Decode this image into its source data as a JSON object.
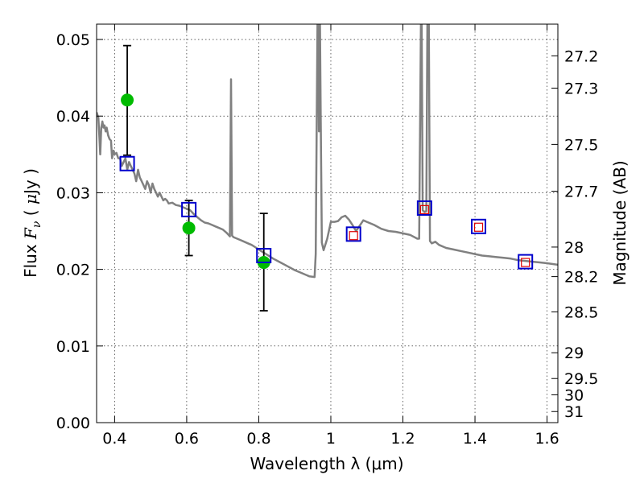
{
  "chart_data": {
    "type": "scatter",
    "xlabel": "Wavelength  λ (μm)",
    "ylabel": "Flux  F_ν  ( μJy )",
    "ylabel_parts": [
      "Flux  ",
      "F",
      "ν",
      "  ( ",
      "μ",
      "Jy )"
    ],
    "y2label": "Magnitude (AB)",
    "xlim": [
      0.35,
      1.63
    ],
    "ylim": [
      0.0,
      0.052
    ],
    "grid": true,
    "x_ticks": [
      {
        "value": 0.4,
        "label": "0.4"
      },
      {
        "value": 0.6,
        "label": "0.6"
      },
      {
        "value": 0.8,
        "label": "0.8"
      },
      {
        "value": 1.0,
        "label": "1"
      },
      {
        "value": 1.2,
        "label": "1.2"
      },
      {
        "value": 1.4,
        "label": "1.4"
      },
      {
        "value": 1.6,
        "label": "1.6"
      }
    ],
    "y_ticks": [
      {
        "value": 0.0,
        "label": "0.00"
      },
      {
        "value": 0.01,
        "label": "0.01"
      },
      {
        "value": 0.02,
        "label": "0.02"
      },
      {
        "value": 0.03,
        "label": "0.03"
      },
      {
        "value": 0.04,
        "label": "0.04"
      },
      {
        "value": 0.05,
        "label": "0.05"
      }
    ],
    "y2_ticks": [
      {
        "mag": 27.2,
        "label": "27.2"
      },
      {
        "mag": 27.3,
        "label": "27.3"
      },
      {
        "mag": 27.5,
        "label": "27.5"
      },
      {
        "mag": 27.7,
        "label": "27.7"
      },
      {
        "mag": 28.0,
        "label": "28"
      },
      {
        "mag": 28.2,
        "label": "28.2"
      },
      {
        "mag": 28.5,
        "label": "28.5"
      },
      {
        "mag": 29.0,
        "label": "29"
      },
      {
        "mag": 29.5,
        "label": "29.5"
      },
      {
        "mag": 30.0,
        "label": "30"
      },
      {
        "mag": 31.0,
        "label": "31"
      }
    ],
    "series": [
      {
        "kind": "line",
        "color": "#808080",
        "points": [
          [
            0.35,
            0.0405
          ],
          [
            0.355,
            0.0398
          ],
          [
            0.358,
            0.037
          ],
          [
            0.36,
            0.035
          ],
          [
            0.363,
            0.0385
          ],
          [
            0.366,
            0.0393
          ],
          [
            0.369,
            0.0385
          ],
          [
            0.372,
            0.0388
          ],
          [
            0.375,
            0.038
          ],
          [
            0.378,
            0.0385
          ],
          [
            0.382,
            0.0375
          ],
          [
            0.386,
            0.037
          ],
          [
            0.39,
            0.0368
          ],
          [
            0.393,
            0.0345
          ],
          [
            0.397,
            0.0355
          ],
          [
            0.4,
            0.035
          ],
          [
            0.405,
            0.0352
          ],
          [
            0.41,
            0.0345
          ],
          [
            0.415,
            0.0345
          ],
          [
            0.42,
            0.0335
          ],
          [
            0.425,
            0.034
          ],
          [
            0.43,
            0.0345
          ],
          [
            0.435,
            0.033
          ],
          [
            0.44,
            0.034
          ],
          [
            0.445,
            0.0335
          ],
          [
            0.45,
            0.033
          ],
          [
            0.455,
            0.0325
          ],
          [
            0.46,
            0.0315
          ],
          [
            0.465,
            0.033
          ],
          [
            0.47,
            0.032
          ],
          [
            0.475,
            0.0315
          ],
          [
            0.48,
            0.031
          ],
          [
            0.485,
            0.0305
          ],
          [
            0.49,
            0.0315
          ],
          [
            0.495,
            0.031
          ],
          [
            0.5,
            0.03
          ],
          [
            0.505,
            0.0312
          ],
          [
            0.51,
            0.0305
          ],
          [
            0.515,
            0.03
          ],
          [
            0.52,
            0.0295
          ],
          [
            0.525,
            0.03
          ],
          [
            0.53,
            0.0295
          ],
          [
            0.535,
            0.029
          ],
          [
            0.54,
            0.0292
          ],
          [
            0.545,
            0.029
          ],
          [
            0.55,
            0.0286
          ],
          [
            0.56,
            0.0287
          ],
          [
            0.57,
            0.0284
          ],
          [
            0.58,
            0.0283
          ],
          [
            0.59,
            0.0281
          ],
          [
            0.6,
            0.0279
          ],
          [
            0.61,
            0.0277
          ],
          [
            0.62,
            0.0272
          ],
          [
            0.63,
            0.0268
          ],
          [
            0.64,
            0.0264
          ],
          [
            0.65,
            0.0261
          ],
          [
            0.66,
            0.026
          ],
          [
            0.67,
            0.0258
          ],
          [
            0.68,
            0.0256
          ],
          [
            0.69,
            0.0254
          ],
          [
            0.7,
            0.0252
          ],
          [
            0.71,
            0.0248
          ],
          [
            0.718,
            0.0244
          ],
          [
            0.72,
            0.0243
          ],
          [
            0.723,
            0.0448
          ],
          [
            0.726,
            0.0244
          ],
          [
            0.73,
            0.0242
          ],
          [
            0.74,
            0.024
          ],
          [
            0.75,
            0.0238
          ],
          [
            0.76,
            0.0236
          ],
          [
            0.77,
            0.0234
          ],
          [
            0.78,
            0.0232
          ],
          [
            0.79,
            0.0229
          ],
          [
            0.8,
            0.0226
          ],
          [
            0.82,
            0.022
          ],
          [
            0.84,
            0.0214
          ],
          [
            0.86,
            0.0209
          ],
          [
            0.88,
            0.0204
          ],
          [
            0.9,
            0.0199
          ],
          [
            0.92,
            0.0195
          ],
          [
            0.94,
            0.0191
          ],
          [
            0.955,
            0.019
          ],
          [
            0.958,
            0.022
          ],
          [
            0.961,
            0.04
          ],
          [
            0.963,
            0.052
          ],
          [
            0.965,
            0.052
          ],
          [
            0.967,
            0.038
          ],
          [
            0.97,
            0.052
          ],
          [
            0.972,
            0.04
          ],
          [
            0.975,
            0.0235
          ],
          [
            0.98,
            0.0225
          ],
          [
            0.99,
            0.024
          ],
          [
            1.0,
            0.0262
          ],
          [
            1.01,
            0.0262
          ],
          [
            1.02,
            0.0263
          ],
          [
            1.03,
            0.0268
          ],
          [
            1.04,
            0.027
          ],
          [
            1.05,
            0.0265
          ],
          [
            1.06,
            0.0258
          ],
          [
            1.07,
            0.025
          ],
          [
            1.08,
            0.0257
          ],
          [
            1.09,
            0.0264
          ],
          [
            1.1,
            0.0262
          ],
          [
            1.12,
            0.0258
          ],
          [
            1.14,
            0.0253
          ],
          [
            1.16,
            0.025
          ],
          [
            1.18,
            0.0249
          ],
          [
            1.2,
            0.0247
          ],
          [
            1.22,
            0.0245
          ],
          [
            1.24,
            0.024
          ],
          [
            1.245,
            0.024
          ],
          [
            1.25,
            0.052
          ],
          [
            1.252,
            0.052
          ],
          [
            1.255,
            0.0277
          ],
          [
            1.26,
            0.0275
          ],
          [
            1.265,
            0.0276
          ],
          [
            1.268,
            0.052
          ],
          [
            1.272,
            0.052
          ],
          [
            1.275,
            0.0237
          ],
          [
            1.28,
            0.0234
          ],
          [
            1.29,
            0.0236
          ],
          [
            1.3,
            0.0232
          ],
          [
            1.32,
            0.0228
          ],
          [
            1.34,
            0.0226
          ],
          [
            1.36,
            0.0224
          ],
          [
            1.38,
            0.0222
          ],
          [
            1.4,
            0.022
          ],
          [
            1.42,
            0.0218
          ],
          [
            1.44,
            0.0217
          ],
          [
            1.46,
            0.0216
          ],
          [
            1.48,
            0.0215
          ],
          [
            1.5,
            0.0214
          ],
          [
            1.52,
            0.0212
          ],
          [
            1.54,
            0.0211
          ],
          [
            1.56,
            0.021
          ],
          [
            1.58,
            0.0209
          ],
          [
            1.6,
            0.0208
          ],
          [
            1.63,
            0.0206
          ]
        ]
      },
      {
        "kind": "points-with-error",
        "marker": "circle",
        "color": "#00bb00",
        "points": [
          {
            "x": 0.435,
            "y": 0.0421,
            "err_low": 0.0072,
            "err_high": 0.0071
          },
          {
            "x": 0.606,
            "y": 0.0254,
            "err_low": 0.0036,
            "err_high": 0.0036
          },
          {
            "x": 0.814,
            "y": 0.0209,
            "err_low": 0.0063,
            "err_high": 0.0064
          }
        ]
      },
      {
        "kind": "points",
        "marker": "open-square",
        "color": "#0000cc",
        "points": [
          [
            0.435,
            0.0338
          ],
          [
            0.606,
            0.0278
          ],
          [
            0.814,
            0.0218
          ],
          [
            1.063,
            0.0246
          ],
          [
            1.26,
            0.028
          ],
          [
            1.41,
            0.0256
          ],
          [
            1.54,
            0.021
          ]
        ]
      },
      {
        "kind": "points",
        "marker": "small-open-square",
        "color": "#dd0000",
        "points": [
          [
            1.063,
            0.0244
          ],
          [
            1.26,
            0.0278
          ],
          [
            1.41,
            0.0255
          ],
          [
            1.54,
            0.0209
          ]
        ]
      }
    ]
  }
}
